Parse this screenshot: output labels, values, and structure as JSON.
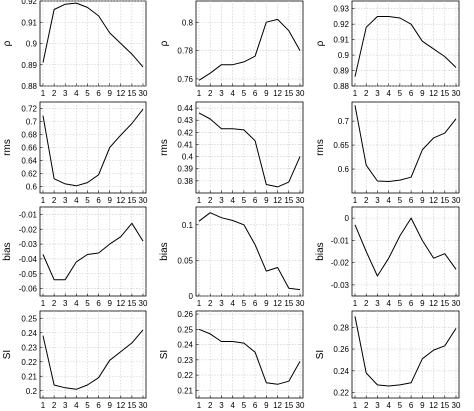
{
  "chart_data": [
    {
      "type": "line",
      "ylabel": "ρ",
      "categories": [
        "1",
        "2",
        "3",
        "4",
        "5",
        "6",
        "9",
        "12",
        "15",
        "30"
      ],
      "ylim": [
        0.88,
        0.92
      ],
      "yticks": [
        "0.88",
        "0.89",
        "0.9",
        "0.91",
        "0.92"
      ],
      "series": [
        {
          "values": [
            0.891,
            0.916,
            0.9185,
            0.919,
            0.917,
            0.913,
            0.905,
            0.9,
            0.895,
            0.889
          ]
        }
      ],
      "grid": true
    },
    {
      "type": "line",
      "ylabel": "ρ",
      "categories": [
        "1",
        "2",
        "3",
        "4",
        "5",
        "6",
        "9",
        "12",
        "15",
        "30"
      ],
      "ylim": [
        0.755,
        0.815
      ],
      "yticks": [
        "0.76",
        "0.78",
        "0.8"
      ],
      "series": [
        {
          "values": [
            0.759,
            0.764,
            0.77,
            0.77,
            0.772,
            0.776,
            0.8,
            0.802,
            0.794,
            0.78
          ]
        }
      ],
      "grid": true
    },
    {
      "type": "line",
      "ylabel": "ρ",
      "categories": [
        "1",
        "2",
        "3",
        "4",
        "5",
        "6",
        "9",
        "12",
        "15",
        "30"
      ],
      "ylim": [
        0.88,
        0.935
      ],
      "yticks": [
        "0.88",
        "0.89",
        "0.9",
        "0.91",
        "0.92",
        "0.93"
      ],
      "series": [
        {
          "values": [
            0.886,
            0.918,
            0.925,
            0.925,
            0.924,
            0.92,
            0.909,
            0.904,
            0.899,
            0.892
          ]
        }
      ],
      "grid": true
    },
    {
      "type": "line",
      "ylabel": "rms",
      "categories": [
        "1",
        "2",
        "3",
        "4",
        "5",
        "6",
        "9",
        "12",
        "15",
        "30"
      ],
      "ylim": [
        0.59,
        0.73
      ],
      "yticks": [
        "0.6",
        "0.62",
        "0.64",
        "0.66",
        "0.68",
        "0.7",
        "0.72"
      ],
      "series": [
        {
          "values": [
            0.709,
            0.612,
            0.604,
            0.601,
            0.606,
            0.618,
            0.66,
            0.679,
            0.697,
            0.719
          ]
        }
      ],
      "grid": true
    },
    {
      "type": "line",
      "ylabel": "rms",
      "categories": [
        "1",
        "2",
        "3",
        "4",
        "5",
        "6",
        "9",
        "12",
        "15",
        "30"
      ],
      "ylim": [
        0.37,
        0.445
      ],
      "yticks": [
        "0.38",
        "0.39",
        "0.4",
        "0.41",
        "0.42",
        "0.43",
        "0.44"
      ],
      "series": [
        {
          "values": [
            0.436,
            0.431,
            0.423,
            0.423,
            0.422,
            0.413,
            0.377,
            0.375,
            0.379,
            0.4
          ]
        }
      ],
      "grid": true
    },
    {
      "type": "line",
      "ylabel": "rms",
      "categories": [
        "1",
        "2",
        "3",
        "4",
        "5",
        "6",
        "9",
        "12",
        "15",
        "30"
      ],
      "ylim": [
        0.55,
        0.74
      ],
      "yticks": [
        "0.6",
        "0.65",
        "0.7"
      ],
      "series": [
        {
          "values": [
            0.733,
            0.608,
            0.575,
            0.574,
            0.577,
            0.583,
            0.64,
            0.665,
            0.675,
            0.705
          ]
        }
      ],
      "grid": true
    },
    {
      "type": "line",
      "ylabel": "bias",
      "categories": [
        "1",
        "2",
        "3",
        "4",
        "5",
        "6",
        "9",
        "12",
        "15",
        "30"
      ],
      "ylim": [
        -0.065,
        -0.005
      ],
      "yticks": [
        "-0.06",
        "-0.05",
        "-0.04",
        "-0.03",
        "-0.02",
        "-0.01"
      ],
      "series": [
        {
          "values": [
            -0.037,
            -0.054,
            -0.054,
            -0.042,
            -0.037,
            -0.036,
            -0.03,
            -0.025,
            -0.016,
            -0.028
          ]
        }
      ],
      "grid": true
    },
    {
      "type": "line",
      "ylabel": "bias",
      "categories": [
        "1",
        "2",
        "3",
        "4",
        "5",
        "6",
        "9",
        "12",
        "15",
        "30"
      ],
      "ylim": [
        0,
        0.125
      ],
      "yticks": [
        "0",
        "0.05",
        "0.1"
      ],
      "series": [
        {
          "values": [
            0.105,
            0.117,
            0.11,
            0.106,
            0.1,
            0.072,
            0.035,
            0.04,
            0.011,
            0.009
          ]
        }
      ],
      "grid": true
    },
    {
      "type": "line",
      "ylabel": "bias",
      "categories": [
        "1",
        "2",
        "3",
        "4",
        "5",
        "6",
        "9",
        "12",
        "15",
        "30"
      ],
      "ylim": [
        -0.035,
        0.005
      ],
      "yticks": [
        "-0.03",
        "-0.02",
        "-0.01",
        "0"
      ],
      "series": [
        {
          "values": [
            -0.003,
            -0.015,
            -0.026,
            -0.018,
            -0.008,
            0.0,
            -0.01,
            -0.018,
            -0.016,
            -0.023
          ]
        }
      ],
      "grid": true
    },
    {
      "type": "line",
      "ylabel": "SI",
      "categories": [
        "1",
        "2",
        "3",
        "4",
        "5",
        "6",
        "9",
        "12",
        "15",
        "30"
      ],
      "ylim": [
        0.195,
        0.255
      ],
      "yticks": [
        "0.2",
        "0.21",
        "0.22",
        "0.23",
        "0.24",
        "0.25"
      ],
      "series": [
        {
          "values": [
            0.238,
            0.204,
            0.202,
            0.201,
            0.204,
            0.209,
            0.221,
            0.227,
            0.233,
            0.242
          ]
        }
      ],
      "grid": true
    },
    {
      "type": "line",
      "ylabel": "SI",
      "categories": [
        "1",
        "2",
        "3",
        "4",
        "5",
        "6",
        "9",
        "12",
        "15",
        "30"
      ],
      "ylim": [
        0.205,
        0.262
      ],
      "yticks": [
        "0.21",
        "0.22",
        "0.23",
        "0.24",
        "0.25",
        "0.26"
      ],
      "series": [
        {
          "values": [
            0.25,
            0.247,
            0.242,
            0.242,
            0.241,
            0.235,
            0.215,
            0.214,
            0.216,
            0.229
          ]
        }
      ],
      "grid": true
    },
    {
      "type": "line",
      "ylabel": "SI",
      "categories": [
        "1",
        "2",
        "3",
        "4",
        "5",
        "6",
        "9",
        "12",
        "15",
        "30"
      ],
      "ylim": [
        0.215,
        0.295
      ],
      "yticks": [
        "0.22",
        "0.24",
        "0.26",
        "0.28"
      ],
      "series": [
        {
          "values": [
            0.29,
            0.238,
            0.227,
            0.226,
            0.227,
            0.229,
            0.251,
            0.259,
            0.263,
            0.279
          ]
        }
      ],
      "grid": true
    }
  ]
}
